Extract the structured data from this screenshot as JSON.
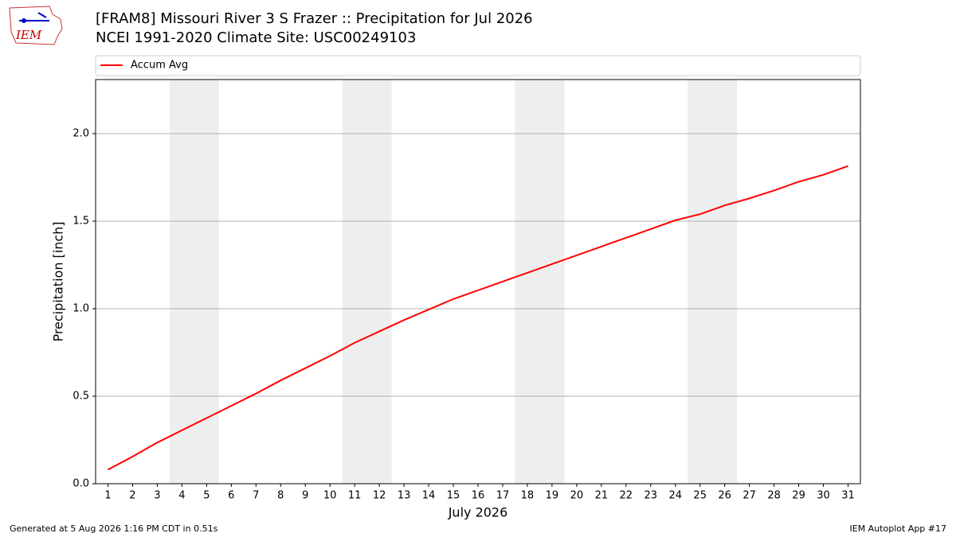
{
  "logo": "IEM",
  "footer": {
    "left": "Generated at 5 Aug 2026 1:16 PM CDT in 0.51s",
    "right": "IEM Autoplot App #17"
  },
  "chart_data": {
    "type": "line",
    "title": "[FRAM8] Missouri River 3 S Frazer :: Precipitation for Jul 2026",
    "subtitle": "NCEI 1991-2020 Climate Site: USC00249103",
    "xlabel": "July 2026",
    "ylabel": "Precipitation [inch]",
    "x": [
      1,
      2,
      3,
      4,
      5,
      6,
      7,
      8,
      9,
      10,
      11,
      12,
      13,
      14,
      15,
      16,
      17,
      18,
      19,
      20,
      21,
      22,
      23,
      24,
      25,
      26,
      27,
      28,
      29,
      30,
      31
    ],
    "series": [
      {
        "name": "Accum Avg",
        "color": "#ff0000",
        "values": [
          0.08,
          0.155,
          0.235,
          0.305,
          0.375,
          0.445,
          0.515,
          0.59,
          0.66,
          0.73,
          0.805,
          0.87,
          0.935,
          0.995,
          1.055,
          1.105,
          1.155,
          1.205,
          1.255,
          1.305,
          1.355,
          1.405,
          1.455,
          1.505,
          1.54,
          1.59,
          1.63,
          1.675,
          1.725,
          1.765,
          1.815
        ]
      }
    ],
    "shaded_ranges": [
      [
        3.5,
        5.5
      ],
      [
        10.5,
        12.5
      ],
      [
        17.5,
        19.5
      ],
      [
        24.5,
        26.5
      ]
    ],
    "xlim": [
      0.5,
      31.5
    ],
    "ylim": [
      0,
      2.309
    ],
    "yticks": [
      {
        "value": 0,
        "label": "0.0"
      },
      0.5,
      {
        "value": 1,
        "label": "1.0"
      },
      1.5,
      {
        "value": 2,
        "label": "2.0"
      }
    ],
    "grid": "y",
    "legend": "top"
  }
}
